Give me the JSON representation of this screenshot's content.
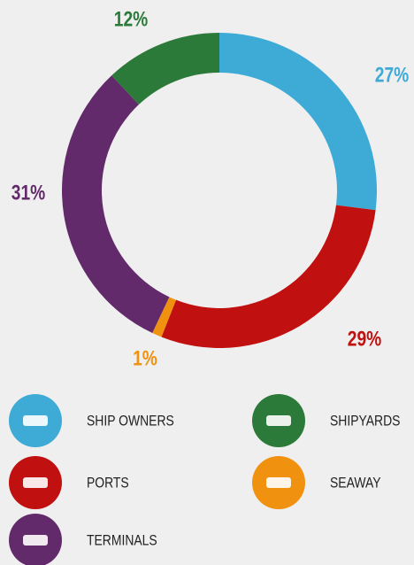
{
  "chart_data": {
    "type": "donut",
    "categories": [
      "SHIP OWNERS",
      "PORTS",
      "SEAWAY",
      "TERMINALS",
      "SHIPYARDS"
    ],
    "values": [
      27,
      29,
      1,
      31,
      12
    ],
    "value_labels": [
      "27%",
      "29%",
      "1%",
      "31%",
      "12%"
    ],
    "colors": [
      "#3eaad6",
      "#c0100f",
      "#f0920f",
      "#632a6b",
      "#2b7a3a"
    ],
    "legend": true
  }
}
